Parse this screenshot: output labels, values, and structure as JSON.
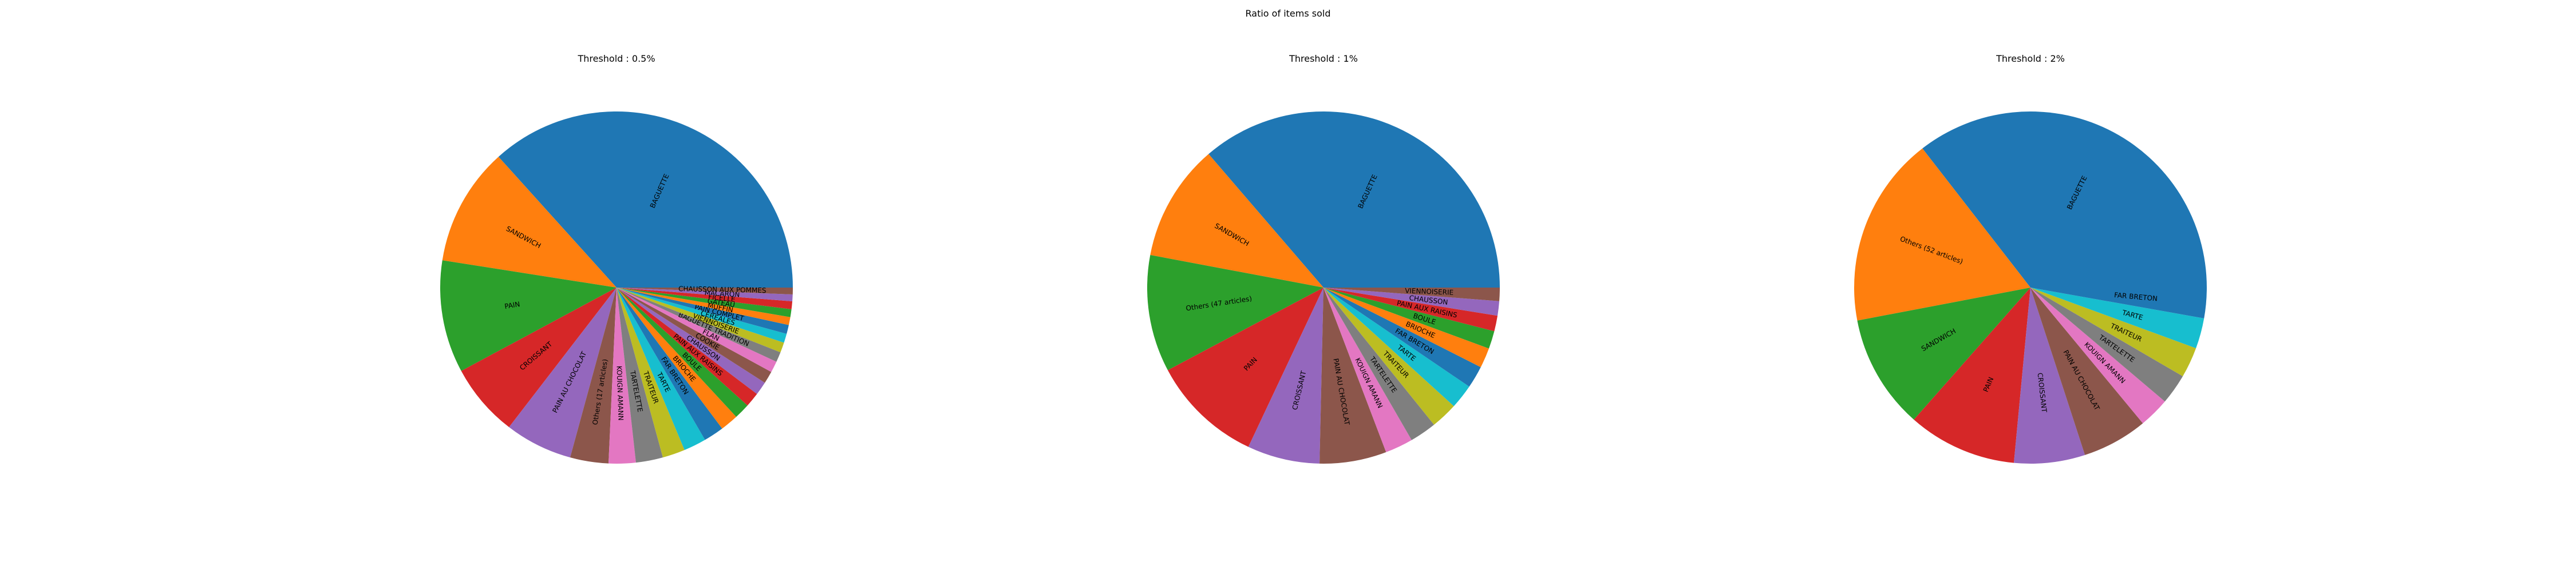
{
  "title": "Ratio of items sold",
  "chart_data": [
    {
      "type": "pie",
      "title": "Threshold : 0.5%",
      "start_angle_deg": 0,
      "direction": "counterclockwise",
      "slices": [
        {
          "label": "BAGUETTE",
          "value": 35.5,
          "color": "#1f77b4"
        },
        {
          "label": "SANDWICH",
          "value": 10.5,
          "color": "#ff7f0e"
        },
        {
          "label": "PAIN",
          "value": 10.0,
          "color": "#2ca02c"
        },
        {
          "label": "CROISSANT",
          "value": 6.5,
          "color": "#d62728"
        },
        {
          "label": "PAIN AU CHOCOLAT",
          "value": 6.0,
          "color": "#9467bd"
        },
        {
          "label": "Others (17 articles)",
          "value": 3.4,
          "color": "#8c564b"
        },
        {
          "label": "KOUIGN AMANN",
          "value": 2.4,
          "color": "#e377c2"
        },
        {
          "label": "TARTELETTE",
          "value": 2.4,
          "color": "#7f7f7f"
        },
        {
          "label": "TRAITEUR",
          "value": 2.0,
          "color": "#bcbd22"
        },
        {
          "label": "TARTE",
          "value": 2.0,
          "color": "#17becf"
        },
        {
          "label": "FAR BRETON",
          "value": 1.8,
          "color": "#1f77b4"
        },
        {
          "label": "BRIOCHE",
          "value": 1.6,
          "color": "#ff7f0e"
        },
        {
          "label": "BOULE",
          "value": 1.4,
          "color": "#2ca02c"
        },
        {
          "label": "PAIN AUX RAISINS",
          "value": 1.3,
          "color": "#d62728"
        },
        {
          "label": "CHAUSSON",
          "value": 1.2,
          "color": "#9467bd"
        },
        {
          "label": "COOKIE",
          "value": 1.1,
          "color": "#8c564b"
        },
        {
          "label": "FLAN",
          "value": 1.0,
          "color": "#e377c2"
        },
        {
          "label": "BAGUETTE TRADITION",
          "value": 0.9,
          "color": "#7f7f7f"
        },
        {
          "label": "VIENNOISERIE",
          "value": 0.9,
          "color": "#bcbd22"
        },
        {
          "label": "CEREALES",
          "value": 0.8,
          "color": "#17becf"
        },
        {
          "label": "PAIN COMPLET",
          "value": 0.8,
          "color": "#1f77b4"
        },
        {
          "label": "MUFFIN",
          "value": 0.7,
          "color": "#ff7f0e"
        },
        {
          "label": "GATEAU",
          "value": 0.7,
          "color": "#2ca02c"
        },
        {
          "label": "FICELLE",
          "value": 0.7,
          "color": "#d62728"
        },
        {
          "label": "MACARON",
          "value": 0.6,
          "color": "#9467bd"
        },
        {
          "label": "CHAUSSON AUX POMMES",
          "value": 0.6,
          "color": "#8c564b"
        }
      ]
    },
    {
      "type": "pie",
      "title": "Threshold : 1%",
      "start_angle_deg": 0,
      "direction": "counterclockwise",
      "slices": [
        {
          "label": "BAGUETTE",
          "value": 35.5,
          "color": "#1f77b4"
        },
        {
          "label": "SANDWICH",
          "value": 10.5,
          "color": "#ff7f0e"
        },
        {
          "label": "Others (47 articles)",
          "value": 10.5,
          "color": "#2ca02c"
        },
        {
          "label": "PAIN",
          "value": 10.0,
          "color": "#d62728"
        },
        {
          "label": "CROISSANT",
          "value": 6.5,
          "color": "#9467bd"
        },
        {
          "label": "PAIN AU CHOCOLAT",
          "value": 6.0,
          "color": "#8c564b"
        },
        {
          "label": "KOUIGN AMANN",
          "value": 2.5,
          "color": "#e377c2"
        },
        {
          "label": "TARTELETTE",
          "value": 2.4,
          "color": "#7f7f7f"
        },
        {
          "label": "TRAITEUR",
          "value": 2.4,
          "color": "#bcbd22"
        },
        {
          "label": "TARTE",
          "value": 2.2,
          "color": "#17becf"
        },
        {
          "label": "FAR BRETON",
          "value": 2.0,
          "color": "#1f77b4"
        },
        {
          "label": "BRIOCHE",
          "value": 1.8,
          "color": "#ff7f0e"
        },
        {
          "label": "BOULE",
          "value": 1.6,
          "color": "#2ca02c"
        },
        {
          "label": "PAIN AUX RAISINS",
          "value": 1.4,
          "color": "#d62728"
        },
        {
          "label": "CHAUSSON",
          "value": 1.3,
          "color": "#9467bd"
        },
        {
          "label": "VIENNOISERIE",
          "value": 1.2,
          "color": "#8c564b"
        }
      ]
    },
    {
      "type": "pie",
      "title": "Threshold : 2%",
      "start_angle_deg": 0,
      "direction": "counterclockwise",
      "slices": [
        {
          "label": "BAGUETTE",
          "value": 35.5,
          "color": "#1f77b4"
        },
        {
          "label": "Others (52 articles)",
          "value": 17.5,
          "color": "#ff7f0e"
        },
        {
          "label": "SANDWICH",
          "value": 10.5,
          "color": "#2ca02c"
        },
        {
          "label": "PAIN",
          "value": 10.0,
          "color": "#d62728"
        },
        {
          "label": "CROISSANT",
          "value": 6.5,
          "color": "#9467bd"
        },
        {
          "label": "PAIN AU CHOCOLAT",
          "value": 6.0,
          "color": "#8c564b"
        },
        {
          "label": "KOUIGN AMANN",
          "value": 2.8,
          "color": "#e377c2"
        },
        {
          "label": "TARTELETTE",
          "value": 2.8,
          "color": "#7f7f7f"
        },
        {
          "label": "TRAITEUR",
          "value": 2.8,
          "color": "#bcbd22"
        },
        {
          "label": "TARTE",
          "value": 2.8,
          "color": "#17becf"
        },
        {
          "label": "FAR BRETON",
          "value": 2.8,
          "color": "#1f77b4"
        }
      ]
    }
  ]
}
